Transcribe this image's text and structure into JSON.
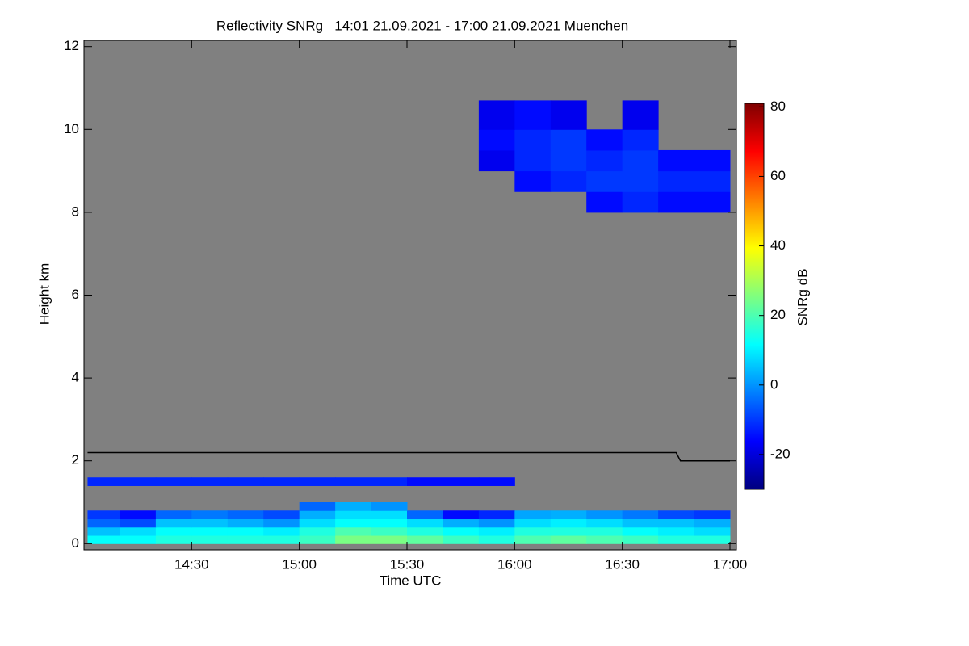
{
  "chart_data": {
    "type": "heatmap",
    "title": "Reflectivity SNRg   14:01 21.09.2021 - 17:00 21.09.2021 Muenchen",
    "xlabel": "Time UTC",
    "ylabel": "Height km",
    "colorbar_label": "SNRg dB",
    "background": "#808080",
    "xlim": [
      14.0,
      17.03
    ],
    "xticks": [
      {
        "value": 14.5,
        "label": "14:30"
      },
      {
        "value": 15.0,
        "label": "15:00"
      },
      {
        "value": 15.5,
        "label": "15:30"
      },
      {
        "value": 16.0,
        "label": "16:00"
      },
      {
        "value": 16.5,
        "label": "16:30"
      },
      {
        "value": 17.0,
        "label": "17:00"
      }
    ],
    "ylim": [
      -0.15,
      12.15
    ],
    "yticks": [
      0,
      2,
      4,
      6,
      8,
      10,
      12
    ],
    "clim": [
      -30,
      81
    ],
    "cticks": [
      -20,
      0,
      20,
      40,
      60,
      80
    ],
    "colormap": [
      "#00007f",
      "#0000ff",
      "#007fff",
      "#00ffff",
      "#7fff7f",
      "#ffff00",
      "#ff7f00",
      "#ff0000",
      "#7f0000"
    ],
    "x_edges": [
      14.0167,
      14.1667,
      14.3333,
      14.5,
      14.6667,
      14.8333,
      15.0,
      15.1667,
      15.3333,
      15.5,
      15.6667,
      15.8333,
      16.0,
      16.1667,
      16.3333,
      16.5,
      16.6667,
      16.8333,
      17.0
    ],
    "y_edges": [
      0,
      0.2,
      0.4,
      0.6,
      0.8,
      1.0,
      1.4,
      1.6,
      8.0,
      8.5,
      9.0,
      9.5,
      10.0,
      10.7
    ],
    "z": [
      [
        12,
        12,
        15,
        15,
        15,
        15,
        18,
        25,
        25,
        22,
        18,
        15,
        20,
        22,
        20,
        18,
        15,
        15
      ],
      [
        5,
        8,
        12,
        12,
        12,
        10,
        15,
        20,
        18,
        15,
        12,
        10,
        15,
        15,
        15,
        12,
        10,
        8
      ],
      [
        -5,
        -8,
        5,
        5,
        3,
        0,
        8,
        12,
        12,
        8,
        3,
        0,
        8,
        10,
        8,
        5,
        5,
        3
      ],
      [
        -10,
        -15,
        -5,
        -3,
        -5,
        -8,
        3,
        8,
        8,
        -5,
        -15,
        -12,
        2,
        3,
        0,
        -3,
        -8,
        -10
      ],
      [
        null,
        null,
        null,
        null,
        null,
        null,
        -5,
        3,
        0,
        null,
        null,
        null,
        null,
        null,
        null,
        null,
        null,
        null
      ],
      [
        null,
        null,
        null,
        null,
        null,
        null,
        null,
        null,
        null,
        null,
        null,
        null,
        null,
        null,
        null,
        null,
        null,
        null
      ],
      [
        -12,
        -12,
        -12,
        -12,
        -12,
        -12,
        -12,
        -12,
        -12,
        -15,
        -15,
        -15,
        null,
        null,
        null,
        null,
        null,
        null
      ],
      [
        null,
        null,
        null,
        null,
        null,
        null,
        null,
        null,
        null,
        null,
        null,
        null,
        null,
        null,
        null,
        null,
        null,
        null
      ],
      [
        null,
        null,
        null,
        null,
        null,
        null,
        null,
        null,
        null,
        null,
        null,
        null,
        null,
        null,
        -15,
        -12,
        -15,
        -15
      ],
      [
        null,
        null,
        null,
        null,
        null,
        null,
        null,
        null,
        null,
        null,
        null,
        null,
        -15,
        -12,
        -10,
        -10,
        -12,
        -12
      ],
      [
        null,
        null,
        null,
        null,
        null,
        null,
        null,
        null,
        null,
        null,
        null,
        -18,
        -12,
        -10,
        -12,
        -10,
        -15,
        -15
      ],
      [
        null,
        null,
        null,
        null,
        null,
        null,
        null,
        null,
        null,
        null,
        null,
        -15,
        -12,
        -10,
        -15,
        -12,
        null,
        null
      ],
      [
        null,
        null,
        null,
        null,
        null,
        null,
        null,
        null,
        null,
        null,
        null,
        -18,
        -15,
        -18,
        null,
        -18,
        null,
        null
      ]
    ],
    "line": {
      "x": [
        14.0167,
        16.75,
        16.77,
        17.0
      ],
      "y": [
        2.2,
        2.2,
        2.0,
        2.0
      ],
      "color": "#000000"
    }
  }
}
